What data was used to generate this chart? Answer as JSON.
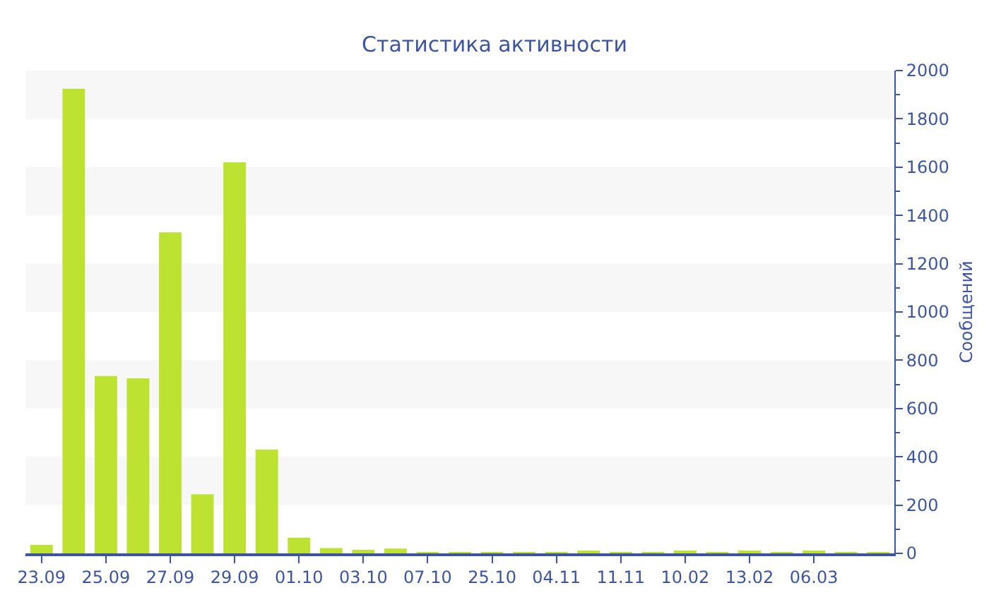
{
  "chart_data": {
    "type": "bar",
    "title": "Статистика активности",
    "ylabel": "Сообщений",
    "categories": [
      "23.09",
      null,
      "25.09",
      null,
      "27.09",
      null,
      "29.09",
      null,
      "01.10",
      null,
      "03.10",
      null,
      "07.10",
      null,
      "25.10",
      null,
      "04.11",
      null,
      "11.11",
      null,
      "10.02",
      null,
      "13.02",
      null,
      "06.03",
      null,
      null
    ],
    "values": [
      35,
      1925,
      735,
      725,
      1330,
      245,
      1620,
      430,
      65,
      22,
      15,
      20,
      5,
      5,
      5,
      5,
      5,
      8,
      5,
      5,
      8,
      5,
      8,
      5,
      10,
      5,
      5
    ],
    "color": "#bde232",
    "ylim": [
      0,
      2000
    ],
    "yticks": [
      0,
      200,
      400,
      600,
      800,
      1000,
      1200,
      1400,
      1600,
      1800,
      2000
    ],
    "bands": [
      {
        "axis": "y",
        "from": 200,
        "to": 400,
        "color": "#f7f7f7"
      },
      {
        "axis": "y",
        "from": 600,
        "to": 800,
        "color": "#f7f7f7"
      },
      {
        "axis": "y",
        "from": 1000,
        "to": 1200,
        "color": "#f7f7f7"
      },
      {
        "axis": "y",
        "from": 1400,
        "to": 1600,
        "color": "#f7f7f7"
      },
      {
        "axis": "y",
        "from": 1800,
        "to": 2000,
        "color": "#f7f7f7"
      }
    ],
    "grid": false,
    "legend": false
  }
}
